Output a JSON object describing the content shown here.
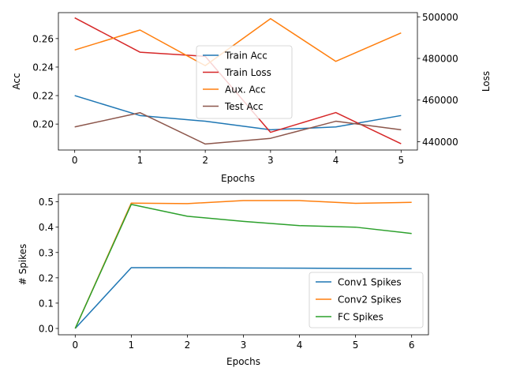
{
  "colors": {
    "blue": "#1f77b4",
    "orange": "#ff7f0e",
    "green": "#2ca02c",
    "red": "#d62728",
    "brown": "#8c564b"
  },
  "chart_data": [
    {
      "type": "line",
      "title": "",
      "xlabel": "Epochs",
      "ylabel": "Acc",
      "y2label": "Loss",
      "x": [
        0,
        1,
        2,
        3,
        4,
        5
      ],
      "xlim": [
        -0.25,
        5.25
      ],
      "xticks": [
        "0",
        "1",
        "2",
        "3",
        "4",
        "5"
      ],
      "ylim": [
        0.1818,
        0.2782
      ],
      "yticks": [
        {
          "value": 0.2,
          "label": "0.20"
        },
        {
          "value": 0.22,
          "label": "0.22"
        },
        {
          "value": 0.24,
          "label": "0.24"
        },
        {
          "value": 0.26,
          "label": "0.26"
        }
      ],
      "y2lim": [
        436000,
        502000
      ],
      "y2ticks": [
        {
          "value": 440000,
          "label": "440000"
        },
        {
          "value": 460000,
          "label": "460000"
        },
        {
          "value": 480000,
          "label": "480000"
        },
        {
          "value": 500000,
          "label": "500000"
        }
      ],
      "grid": false,
      "legend_position": "center",
      "series": [
        {
          "name": "Train Acc",
          "axis": "left",
          "color": "#1f77b4",
          "values": [
            0.22,
            0.206,
            0.202,
            0.196,
            0.198,
            0.206
          ]
        },
        {
          "name": "Train Loss",
          "axis": "right",
          "color": "#d62728",
          "values": [
            499500,
            483000,
            481000,
            444500,
            454000,
            439000
          ]
        },
        {
          "name": "Aux. Acc",
          "axis": "left",
          "color": "#ff7f0e",
          "values": [
            0.252,
            0.266,
            0.241,
            0.274,
            0.244,
            0.264
          ]
        },
        {
          "name": "Test Acc",
          "axis": "left",
          "color": "#8c564b",
          "values": [
            0.198,
            0.208,
            0.186,
            0.19,
            0.202,
            0.196
          ]
        }
      ]
    },
    {
      "type": "line",
      "title": "",
      "xlabel": "Epochs",
      "ylabel": "# Spikes",
      "x": [
        0,
        1,
        2,
        3,
        4,
        5,
        6
      ],
      "xlim": [
        -0.3,
        6.3
      ],
      "xticks": [
        "0",
        "1",
        "2",
        "3",
        "4",
        "5",
        "6"
      ],
      "ylim": [
        -0.025,
        0.53
      ],
      "yticks": [
        {
          "value": 0.0,
          "label": "0.0"
        },
        {
          "value": 0.1,
          "label": "0.1"
        },
        {
          "value": 0.2,
          "label": "0.2"
        },
        {
          "value": 0.3,
          "label": "0.3"
        },
        {
          "value": 0.4,
          "label": "0.4"
        },
        {
          "value": 0.5,
          "label": "0.5"
        }
      ],
      "grid": false,
      "legend_position": "lower right",
      "series": [
        {
          "name": "Conv1 Spikes",
          "color": "#1f77b4",
          "values": [
            0.0,
            0.24,
            0.24,
            0.239,
            0.238,
            0.237,
            0.236
          ]
        },
        {
          "name": "Conv2 Spikes",
          "color": "#ff7f0e",
          "values": [
            0.0,
            0.495,
            0.493,
            0.505,
            0.505,
            0.494,
            0.498
          ]
        },
        {
          "name": "FC Spikes",
          "color": "#2ca02c",
          "values": [
            0.0,
            0.49,
            0.443,
            0.423,
            0.406,
            0.4,
            0.375
          ]
        }
      ]
    }
  ]
}
